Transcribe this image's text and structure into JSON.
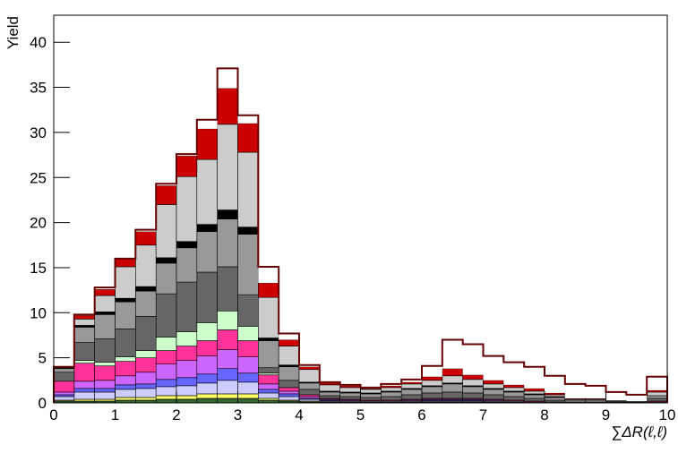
{
  "chart_data": {
    "type": "stacked_histogram",
    "x_label": "∑ΔR(ℓ,ℓ)",
    "y_label": "Yield",
    "bins": [
      0,
      0.333,
      0.667,
      1,
      1.333,
      1.667,
      2,
      2.333,
      2.667,
      3,
      3.333,
      3.667,
      4,
      4.333,
      4.667,
      5,
      5.333,
      5.667,
      6,
      6.333,
      6.667,
      7,
      7.333,
      7.667,
      8,
      8.333,
      8.667,
      9,
      9.333,
      9.667,
      10
    ],
    "xlim": [
      0,
      10
    ],
    "xticks": [
      0,
      1,
      2,
      3,
      4,
      5,
      6,
      7,
      8,
      9,
      10
    ],
    "ylim": [
      0,
      43
    ],
    "yticks": [
      0,
      5,
      10,
      15,
      20,
      25,
      30,
      35,
      40
    ],
    "outline_color": "#660000",
    "series": [
      {
        "color": "#336633",
        "values": [
          0.2,
          0.2,
          0.2,
          0.3,
          0.3,
          0.4,
          0.4,
          0.5,
          0.5,
          0.5,
          0.3,
          0.2,
          0.1,
          0.1,
          0.1,
          0.1,
          0.1,
          0.1,
          0.1,
          0.1,
          0.1,
          0.1,
          0.1,
          0,
          0,
          0,
          0,
          0,
          0,
          0
        ]
      },
      {
        "color": "#ffff66",
        "values": [
          0.1,
          0.2,
          0.2,
          0.3,
          0.3,
          0.4,
          0.4,
          0.5,
          0.5,
          0.5,
          0.2,
          0.1,
          0.1,
          0,
          0,
          0,
          0,
          0,
          0,
          0,
          0,
          0,
          0,
          0,
          0,
          0,
          0,
          0,
          0,
          0
        ]
      },
      {
        "color": "#ccccff",
        "values": [
          0.4,
          0.8,
          0.8,
          0.9,
          1.0,
          1.0,
          1.1,
          1.2,
          1.5,
          1.3,
          0.6,
          0.4,
          0.2,
          0.1,
          0.1,
          0.1,
          0.1,
          0.1,
          0.1,
          0.1,
          0.1,
          0.1,
          0.1,
          0.1,
          0.1,
          0,
          0,
          0,
          0,
          0.1
        ]
      },
      {
        "color": "#6666ff",
        "values": [
          0.2,
          0.4,
          0.4,
          0.5,
          0.5,
          0.8,
          0.9,
          1.0,
          1.3,
          1.0,
          0.4,
          0.3,
          0.1,
          0.1,
          0,
          0,
          0,
          0,
          0.1,
          0.1,
          0.1,
          0,
          0,
          0,
          0,
          0,
          0,
          0,
          0,
          0
        ]
      },
      {
        "color": "#cc66ff",
        "values": [
          0.3,
          0.8,
          0.9,
          1.0,
          1.3,
          1.7,
          1.9,
          2.0,
          2.1,
          1.8,
          0.6,
          0.3,
          0.2,
          0.1,
          0.1,
          0,
          0,
          0.1,
          0.1,
          0.1,
          0.1,
          0.1,
          0,
          0,
          0,
          0,
          0,
          0,
          0,
          0
        ]
      },
      {
        "color": "#ff3399",
        "values": [
          1.2,
          2.0,
          1.6,
          1.6,
          1.6,
          1.5,
          1.6,
          1.7,
          2.2,
          1.8,
          1.0,
          0.4,
          0.2,
          0.1,
          0.1,
          0.1,
          0.1,
          0.1,
          0.1,
          0.1,
          0.1,
          0.1,
          0.1,
          0.1,
          0,
          0,
          0,
          0,
          0,
          0.1
        ]
      },
      {
        "color": "#ccffcc",
        "values": [
          0,
          0.3,
          0.4,
          0.5,
          0.8,
          1.5,
          1.6,
          2.0,
          2.1,
          1.6,
          0.2,
          0,
          0,
          0,
          0,
          0,
          0,
          0,
          0,
          0,
          0,
          0,
          0,
          0,
          0,
          0,
          0,
          0,
          0,
          0
        ]
      },
      {
        "color": "#666666",
        "values": [
          1.0,
          2.0,
          2.6,
          3.1,
          3.8,
          4.8,
          5.5,
          5.6,
          4.9,
          3.5,
          0.6,
          0.8,
          0.6,
          0.3,
          0.3,
          0.3,
          0.4,
          0.5,
          0.6,
          0.7,
          0.6,
          0.5,
          0.4,
          0.3,
          0.2,
          0.1,
          0.1,
          0.1,
          0.1,
          0.3
        ]
      },
      {
        "color": "#999999",
        "values": [
          0.4,
          1.7,
          2.7,
          3.0,
          2.8,
          3.4,
          3.8,
          4.5,
          5.3,
          6.7,
          3.0,
          1.5,
          0.7,
          0.4,
          0.4,
          0.4,
          0.5,
          0.6,
          0.7,
          0.9,
          0.7,
          0.6,
          0.5,
          0.4,
          0.3,
          0.2,
          0.2,
          0.1,
          0.1,
          0.3
        ]
      },
      {
        "color": "#000000",
        "values": [
          0.1,
          0.2,
          0.3,
          0.4,
          0.5,
          0.6,
          0.7,
          0.8,
          1.0,
          0.8,
          0.3,
          0.2,
          0.1,
          0.1,
          0.1,
          0.1,
          0.1,
          0.1,
          0.1,
          0.1,
          0.1,
          0.1,
          0.1,
          0.1,
          0.1,
          0,
          0,
          0,
          0,
          0
        ]
      },
      {
        "color": "#cccccc",
        "values": [
          0.1,
          0.7,
          1.8,
          3.5,
          4.6,
          5.9,
          7.2,
          7.2,
          9.5,
          8.3,
          4.5,
          2.1,
          1.4,
          0.7,
          0.5,
          0.4,
          0.4,
          0.5,
          0.6,
          0.8,
          0.7,
          0.5,
          0.4,
          0.3,
          0.2,
          0.1,
          0.1,
          0.1,
          0,
          0.4
        ]
      },
      {
        "color": "#cc0000",
        "values": [
          0,
          0.4,
          0.7,
          0.9,
          1.5,
          2.1,
          2.3,
          3.4,
          4.0,
          3.2,
          1.6,
          0.7,
          0.3,
          0.2,
          0.2,
          0.1,
          0.2,
          0.2,
          0.4,
          0.8,
          0.5,
          0.4,
          0.3,
          0.3,
          0.2,
          0.1,
          0.1,
          0,
          0,
          0.2
        ]
      },
      {
        "color": "#ffffff",
        "values": [
          0,
          0.1,
          0.2,
          0,
          0.2,
          0.2,
          0.2,
          1.0,
          2.2,
          0.9,
          1.8,
          0.7,
          0.2,
          0.1,
          0.1,
          0.1,
          0.2,
          0.3,
          1.2,
          3.2,
          3.4,
          2.7,
          2.5,
          2.4,
          1.9,
          1.6,
          1.4,
          0.9,
          0.7,
          1.5
        ]
      }
    ]
  }
}
